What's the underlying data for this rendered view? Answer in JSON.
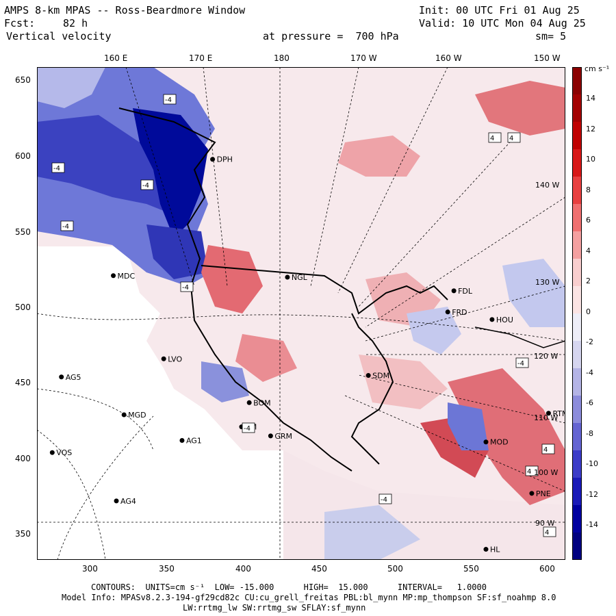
{
  "header": {
    "title": "AMPS 8-km MPAS -- Ross-Beardmore Window",
    "fcst_label": "Fcst:",
    "fcst_value": "82 h",
    "variable": "Vertical velocity",
    "init": "Init: 00 UTC Fri 01 Aug 25",
    "valid": "Valid: 10 UTC Mon 04 Aug 25",
    "pressure": "at pressure =  700 hPa",
    "smoothing": "sm= 5"
  },
  "top_longitudes": [
    "160 E",
    "170 E",
    "180",
    "170 W",
    "160 W",
    "150 W"
  ],
  "y_ticks": [
    "650",
    "600",
    "550",
    "500",
    "450",
    "400",
    "350"
  ],
  "x_ticks": [
    "300",
    "350",
    "400",
    "450",
    "500",
    "550",
    "600"
  ],
  "map_axes": {
    "xlim": [
      265,
      611
    ],
    "ylim": [
      333,
      659
    ]
  },
  "interior_longitude_labels": [
    "140 W",
    "130 W",
    "120 W",
    "110 W",
    "100 W",
    "90 W"
  ],
  "stations": [
    {
      "name": "MDC",
      "x": 315,
      "y": 521
    },
    {
      "name": "NGL",
      "x": 429,
      "y": 520
    },
    {
      "name": "FDL",
      "x": 538,
      "y": 511
    },
    {
      "name": "FRD",
      "x": 534,
      "y": 497
    },
    {
      "name": "HOU",
      "x": 563,
      "y": 492
    },
    {
      "name": "LVO",
      "x": 348,
      "y": 466
    },
    {
      "name": "SDM",
      "x": 482,
      "y": 455
    },
    {
      "name": "AG5",
      "x": 281,
      "y": 454
    },
    {
      "name": "BOM",
      "x": 404,
      "y": 437
    },
    {
      "name": "MGD",
      "x": 322,
      "y": 429
    },
    {
      "name": "TM",
      "x": 399,
      "y": 421
    },
    {
      "name": "GRM",
      "x": 418,
      "y": 415
    },
    {
      "name": "AG1",
      "x": 360,
      "y": 412
    },
    {
      "name": "VOS",
      "x": 275,
      "y": 404
    },
    {
      "name": "AG4",
      "x": 317,
      "y": 372
    },
    {
      "name": "PNE",
      "x": 589,
      "y": 377
    },
    {
      "name": "RTM",
      "x": 600,
      "y": 430
    },
    {
      "name": "MOD",
      "x": 559,
      "y": 411
    },
    {
      "name": "DPH",
      "x": 380,
      "y": 598
    },
    {
      "name": "HL",
      "x": 559,
      "y": 340
    }
  ],
  "contour_boxes": [
    "-4",
    "-4",
    "-4",
    "-4",
    "-4",
    "-4",
    "-4",
    "-4",
    "4",
    "4",
    "4",
    "4",
    "4"
  ],
  "colorbar": {
    "units": "cm s⁻¹",
    "labels": [
      "14",
      "12",
      "10",
      "8",
      "6",
      "4",
      "2",
      "0",
      "-2",
      "-4",
      "-6",
      "-8",
      "-10",
      "-12",
      "-14"
    ],
    "colors": [
      "#8b0000",
      "#a30000",
      "#c00000",
      "#d81818",
      "#e84040",
      "#f07070",
      "#f4a0a0",
      "#f9cece",
      "#fbe4e4",
      "#eeeef8",
      "#d6d6f0",
      "#b4b4e6",
      "#8c8cdc",
      "#6464d2",
      "#3c3cc8",
      "#1a1ab8",
      "#0000a0",
      "#000080"
    ]
  },
  "footer": {
    "contours": "CONTOURS:  UNITS=cm s⁻¹  LOW= -15.000      HIGH=  15.000      INTERVAL=   1.0000",
    "model": "Model Info: MPASv8.2.3-194-gf29cd82c CU:cu_grell_freitas PBL:bl_mynn MP:mp_thompson SF:sf_noahmp 8.0",
    "physics": "LW:rrtmg_lw SW:rrtmg_sw SFLAY:sf_mynn"
  }
}
